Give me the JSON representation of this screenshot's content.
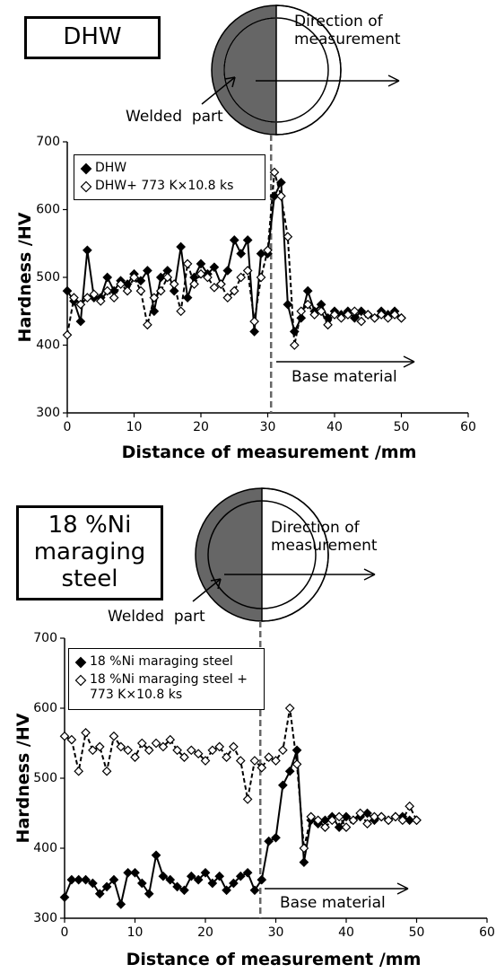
{
  "chart_data": [
    {
      "type": "line",
      "title": "DHW",
      "xlabel": "Distance of measurement /mm",
      "ylabel": "Hardness /HV",
      "annotations": [
        "Direction of measurement",
        "Welded  part",
        "Base material"
      ],
      "boundary_x": 30.5,
      "xlim": [
        0,
        60
      ],
      "xticks": [
        0,
        10,
        20,
        30,
        40,
        50,
        60
      ],
      "ylim": [
        300,
        700
      ],
      "yticks": [
        300,
        400,
        500,
        600,
        700
      ],
      "x": [
        0,
        1,
        2,
        3,
        4,
        5,
        6,
        7,
        8,
        9,
        10,
        11,
        12,
        13,
        14,
        15,
        16,
        17,
        18,
        19,
        20,
        21,
        22,
        23,
        24,
        25,
        26,
        27,
        28,
        29,
        30,
        31,
        32,
        33,
        34,
        35,
        36,
        37,
        38,
        39,
        40,
        41,
        42,
        43,
        44,
        45,
        46,
        47,
        48,
        49,
        50
      ],
      "series": [
        {
          "name": "DHW",
          "color": "#000000",
          "marker_fill": "#000000",
          "dashed": false,
          "values": [
            480,
            465,
            435,
            540,
            470,
            470,
            500,
            480,
            495,
            490,
            505,
            495,
            510,
            450,
            500,
            510,
            480,
            545,
            470,
            500,
            520,
            505,
            515,
            490,
            510,
            555,
            535,
            555,
            420,
            535,
            535,
            620,
            640,
            460,
            420,
            440,
            480,
            450,
            460,
            440,
            450,
            445,
            450,
            440,
            450,
            445,
            440,
            450,
            445,
            450,
            440
          ]
        },
        {
          "name": "DHW+ 773 K×10.8 ks",
          "color": "#000000",
          "marker_fill": "#ffffff",
          "dashed": true,
          "values": [
            415,
            470,
            460,
            470,
            475,
            465,
            480,
            470,
            490,
            480,
            500,
            480,
            430,
            470,
            480,
            500,
            490,
            450,
            520,
            490,
            505,
            500,
            485,
            490,
            470,
            480,
            500,
            510,
            435,
            500,
            540,
            655,
            620,
            560,
            400,
            450,
            460,
            445,
            450,
            430,
            445,
            440,
            445,
            450,
            435,
            445,
            440,
            445,
            440,
            445,
            440
          ]
        }
      ]
    },
    {
      "type": "line",
      "title": "18 %Ni maraging steel",
      "xlabel": "Distance of measurement /mm",
      "ylabel": "Hardness /HV",
      "annotations": [
        "Direction of measurement",
        "Welded  part",
        "Base material"
      ],
      "boundary_x": 27.8,
      "xlim": [
        0,
        60
      ],
      "xticks": [
        0,
        10,
        20,
        30,
        40,
        50,
        60
      ],
      "ylim": [
        300,
        700
      ],
      "yticks": [
        300,
        400,
        500,
        600,
        700
      ],
      "x": [
        0,
        1,
        2,
        3,
        4,
        5,
        6,
        7,
        8,
        9,
        10,
        11,
        12,
        13,
        14,
        15,
        16,
        17,
        18,
        19,
        20,
        21,
        22,
        23,
        24,
        25,
        26,
        27,
        28,
        29,
        30,
        31,
        32,
        33,
        34,
        35,
        36,
        37,
        38,
        39,
        40,
        41,
        42,
        43,
        44,
        45,
        46,
        47,
        48,
        49,
        50
      ],
      "series": [
        {
          "name": "18 %Ni maraging steel",
          "color": "#000000",
          "marker_fill": "#000000",
          "dashed": false,
          "values": [
            330,
            355,
            355,
            355,
            350,
            335,
            345,
            355,
            320,
            365,
            365,
            350,
            335,
            390,
            360,
            355,
            345,
            340,
            360,
            355,
            365,
            350,
            360,
            340,
            350,
            360,
            365,
            340,
            355,
            410,
            415,
            490,
            510,
            540,
            380,
            440,
            435,
            440,
            445,
            430,
            445,
            440,
            445,
            450,
            440,
            445,
            440,
            445,
            445,
            440,
            440
          ]
        },
        {
          "name": "18 %Ni maraging steel + 773 K×10.8 ks",
          "color": "#000000",
          "marker_fill": "#ffffff",
          "dashed": true,
          "values": [
            560,
            555,
            510,
            565,
            540,
            545,
            510,
            560,
            545,
            540,
            530,
            550,
            540,
            550,
            545,
            555,
            540,
            530,
            540,
            535,
            525,
            540,
            545,
            530,
            545,
            525,
            470,
            525,
            515,
            530,
            525,
            540,
            600,
            520,
            400,
            445,
            440,
            430,
            440,
            445,
            430,
            440,
            450,
            435,
            445,
            445,
            440,
            445,
            440,
            460,
            440
          ]
        }
      ]
    }
  ]
}
